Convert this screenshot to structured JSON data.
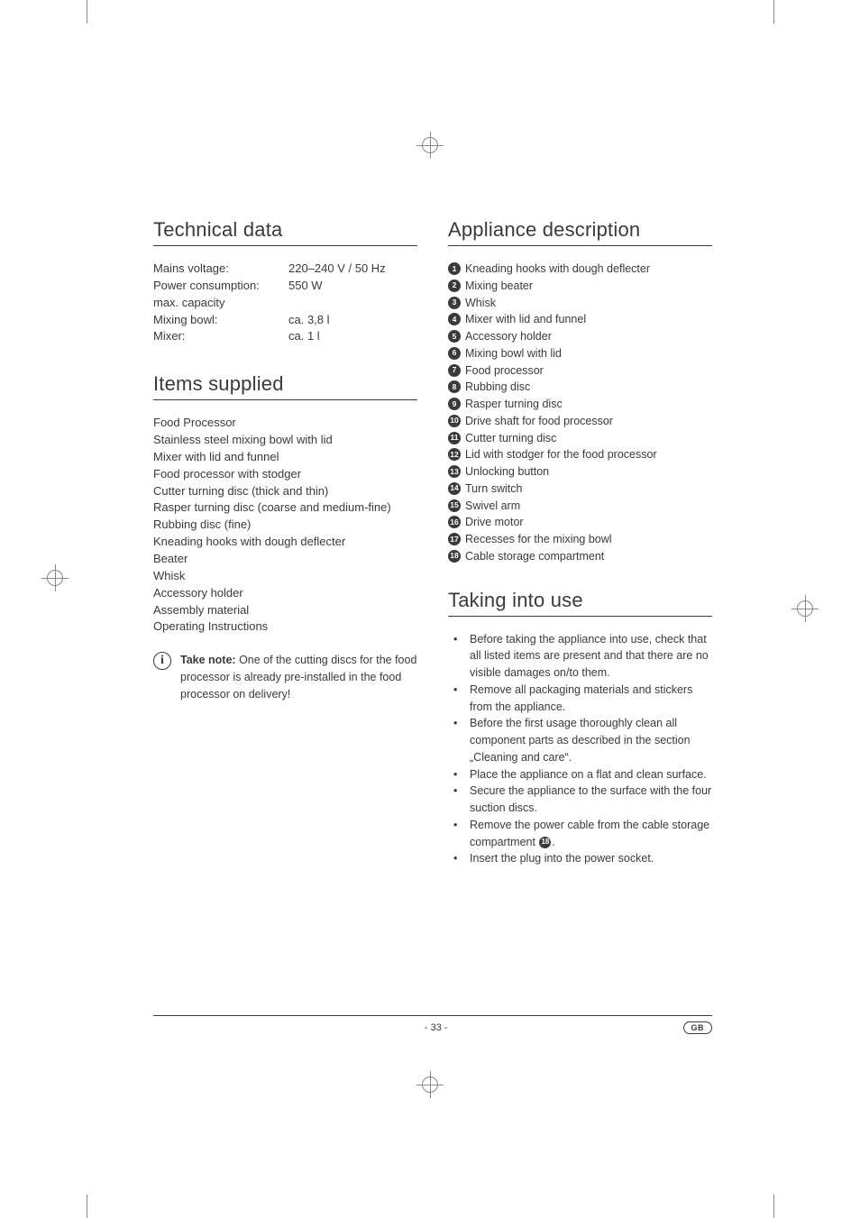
{
  "left": {
    "tech_title": "Technical data",
    "specs": [
      {
        "label": "Mains voltage:",
        "value": "220–240 V / 50 Hz"
      },
      {
        "label": "Power consumption:",
        "value": "550 W"
      },
      {
        "label": "max. capacity",
        "value": ""
      },
      {
        "label": "Mixing bowl:",
        "value": "ca. 3,8 l"
      },
      {
        "label": "Mixer:",
        "value": "ca. 1 l"
      }
    ],
    "items_title": "Items supplied",
    "items": [
      "Food Processor",
      "Stainless steel mixing bowl with lid",
      "Mixer with lid and funnel",
      "Food processor with stodger",
      "Cutter turning disc (thick and thin)",
      "Rasper turning disc (coarse and medium-fine)",
      "Rubbing disc (fine)",
      "Kneading hooks with dough deflecter",
      "Beater",
      "Whisk",
      "Accessory holder",
      "Assembly material",
      "Operating Instructions"
    ],
    "note_lead": "Take note:",
    "note_body": " One of the cutting discs for the food processor is already pre-installed in the food processor on delivery!"
  },
  "right": {
    "desc_title": "Appliance description",
    "desc": [
      "Kneading hooks with dough deflecter",
      "Mixing beater",
      "Whisk",
      "Mixer with lid and funnel",
      "Accessory holder",
      "Mixing bowl with lid",
      "Food processor",
      "Rubbing disc",
      "Rasper turning disc",
      "Drive shaft for food processor",
      "Cutter turning disc",
      "Lid with stodger for the food processor",
      "Unlocking button",
      "Turn switch",
      "Swivel arm",
      "Drive motor",
      "Recesses for the mixing bowl",
      "Cable storage compartment"
    ],
    "use_title": "Taking into use",
    "use": [
      "Before taking the appliance into use, check that all listed items are present and that there are no visible damages on/to them.",
      "Remove all packaging materials and stickers from the appliance.",
      "Before the first usage thoroughly clean all component parts as described in the section „Cleaning and care“.",
      "Place the appliance on a flat and clean surface.",
      "Secure the appliance to the surface with the four suction discs.",
      "Remove the power cable from the cable storage compartment ⓲.",
      "Insert the plug into the power socket."
    ],
    "use_badge_step_index": 5,
    "use_badge_num": "18"
  },
  "footer": {
    "page": "- 33 -",
    "badge": "GB"
  }
}
